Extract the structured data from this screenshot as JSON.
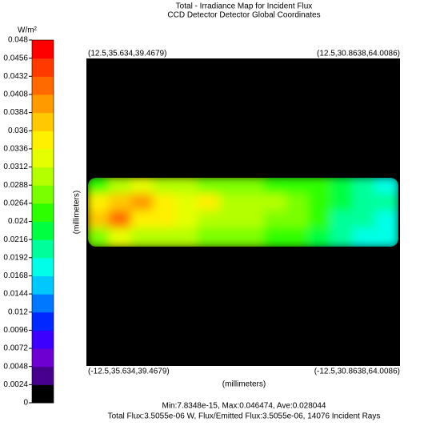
{
  "chart_data": {
    "type": "heatmap",
    "title": "Total - Irradiance Map for Incident Flux",
    "subtitle": "CCD Detector Detector    Global Coordinates",
    "colorbar_label": "W/m²",
    "clim": [
      0,
      0.048
    ],
    "cticks": [
      0,
      0.0024,
      0.0048,
      0.0072,
      0.0096,
      0.012,
      0.0144,
      0.0168,
      0.0192,
      0.0216,
      0.024,
      0.0264,
      0.0288,
      0.0312,
      0.0336,
      0.036,
      0.0384,
      0.0408,
      0.0432,
      0.0456,
      0.048
    ],
    "colors": [
      "#000000",
      "#46008c",
      "#6e00d2",
      "#3c00ff",
      "#0028ff",
      "#0078ff",
      "#00c8ff",
      "#00ffe6",
      "#00ff9a",
      "#00ff40",
      "#2eff00",
      "#7aff00",
      "#b4ff00",
      "#e6ff00",
      "#fff000",
      "#ffc800",
      "#ff9a00",
      "#ff6a00",
      "#ff3a00",
      "#ff0000"
    ],
    "corner_labels": [
      "(12.5,35.634,39.4679)",
      "(12.5,30.8638,64.0086)",
      "(-12.5,35.634,39.4679)",
      "(-12.5,30.8638,64.0086)"
    ],
    "xlabel": "(millimeters)",
    "ylabel": "(millimeters)",
    "z": [
      [
        0.026,
        0.03,
        0.032,
        0.03,
        0.029,
        0.028,
        0.027,
        0.027,
        0.026,
        0.025,
        0.024,
        0.022,
        0.02,
        0.018
      ],
      [
        0.036,
        0.038,
        0.039,
        0.035,
        0.033,
        0.036,
        0.031,
        0.029,
        0.029,
        0.027,
        0.026,
        0.022,
        0.02,
        0.02
      ],
      [
        0.038,
        0.042,
        0.036,
        0.034,
        0.032,
        0.031,
        0.03,
        0.029,
        0.028,
        0.027,
        0.025,
        0.021,
        0.021,
        0.019
      ],
      [
        0.028,
        0.032,
        0.03,
        0.029,
        0.029,
        0.028,
        0.027,
        0.027,
        0.026,
        0.024,
        0.023,
        0.021,
        0.019,
        0.018
      ]
    ],
    "footer": [
      "Min:7.8348e-15, Max:0.046474, Ave:0.028044",
      "Total Flux:3.5055e-06 W, Flux/Emitted Flux:3.5055e-06, 14076 Incident Rays"
    ]
  }
}
